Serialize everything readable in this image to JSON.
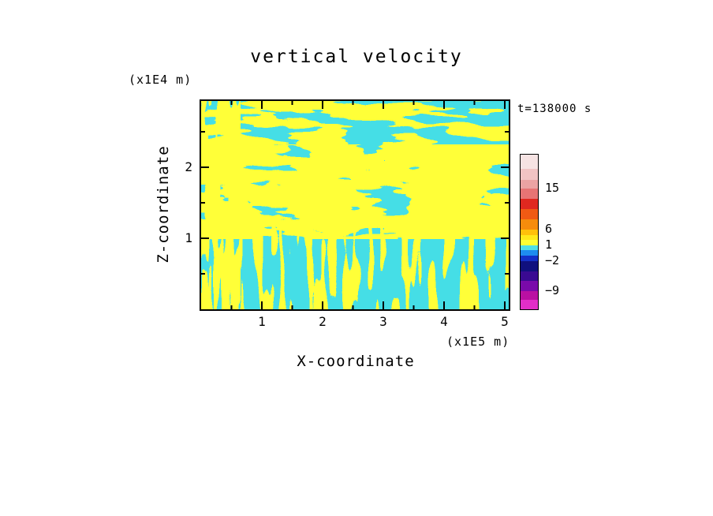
{
  "title": "vertical velocity",
  "annotations": {
    "time": "t=138000 s",
    "y_unit": "(x1E4 m)",
    "x_unit": "(x1E5 m)"
  },
  "axes": {
    "x": {
      "label": "X-coordinate",
      "ticks": [
        "1",
        "2",
        "3",
        "4",
        "5"
      ],
      "minor_step": 0.5,
      "range": [
        0,
        5.1
      ]
    },
    "z": {
      "label": "Z-coordinate",
      "ticks": [
        "1",
        "2"
      ],
      "minor_step": 0.5,
      "range": [
        0,
        2.9
      ]
    }
  },
  "colorbar": {
    "segments": [
      {
        "color": "#F6E3E3",
        "h": 18
      },
      {
        "color": "#F1C4C4",
        "h": 14
      },
      {
        "color": "#EBA3A3",
        "h": 11
      },
      {
        "color": "#E77474",
        "h": 13
      },
      {
        "color": "#E02820",
        "h": 13
      },
      {
        "color": "#F05A14",
        "h": 13
      },
      {
        "color": "#F68C0C",
        "h": 13
      },
      {
        "color": "#FFC00A",
        "h": 7
      },
      {
        "color": "#FFE81A",
        "h": 6
      },
      {
        "color": "#FFFF33",
        "h": 7
      },
      {
        "color": "#50DFE6",
        "h": 6
      },
      {
        "color": "#1E8CF0",
        "h": 7
      },
      {
        "color": "#1430C8",
        "h": 7
      },
      {
        "color": "#10107E",
        "h": 13
      },
      {
        "color": "#3A0A92",
        "h": 12
      },
      {
        "color": "#7A0AAA",
        "h": 13
      },
      {
        "color": "#BA10A2",
        "h": 11
      },
      {
        "color": "#E22EC8",
        "h": 12
      }
    ],
    "labels": [
      {
        "text": "15",
        "after_segment": 2
      },
      {
        "text": "6",
        "after_segment": 6
      },
      {
        "text": "1",
        "after_segment": 9
      },
      {
        "text": "−2",
        "after_segment": 12
      },
      {
        "text": "−9",
        "after_segment": 15
      }
    ]
  },
  "chart_data": {
    "type": "heatmap",
    "title": "vertical velocity",
    "xlabel": "X-coordinate",
    "x_unit": "(x1E5 m)",
    "ylabel": "Z-coordinate",
    "y_unit": "(x1E4 m)",
    "x_range": [
      0,
      5.1
    ],
    "z_range": [
      0,
      2.9
    ],
    "x_ticks": [
      1,
      2,
      3,
      4,
      5
    ],
    "z_ticks": [
      1,
      2
    ],
    "time_label": "t=138000 s",
    "colorbar_levels": [
      15,
      6,
      1,
      -2,
      -9
    ],
    "field_colors": {
      "downdraft_cyan": "#45DEE6",
      "updraft_yellow": "#FFFF38"
    },
    "legend_position": "right",
    "grid": false,
    "pattern": "two-tone filled contour field: irregular yellow updraft blobs over cyan background; horizontally elongated yellow bands in the upper/middle region, thin vertical yellow streaks near the bottom and along the left edge"
  }
}
